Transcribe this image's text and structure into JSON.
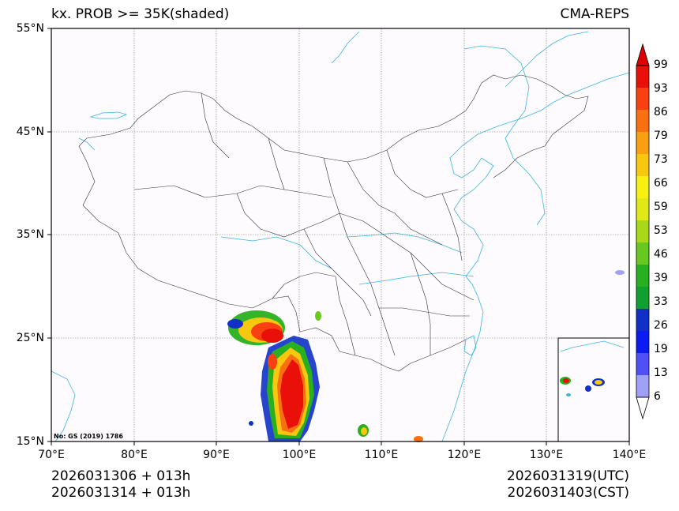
{
  "header": {
    "title_left": "kx. PROB >= 35K(shaded)",
    "title_right": "CMA-REPS"
  },
  "axes": {
    "lat_labels": [
      "55°N",
      "45°N",
      "35°N",
      "25°N",
      "15°N"
    ],
    "lon_labels": [
      "70°E",
      "80°E",
      "90°E",
      "100°E",
      "110°E",
      "120°E",
      "130°E",
      "140°E"
    ]
  },
  "colorbar": {
    "ticks": [
      "99",
      "93",
      "86",
      "79",
      "73",
      "66",
      "59",
      "53",
      "46",
      "39",
      "33",
      "26",
      "19",
      "13",
      "6"
    ],
    "colors": [
      "#a0a0f8",
      "#5050f8",
      "#0a1cf0",
      "#1030c8",
      "#10a030",
      "#28b020",
      "#68c820",
      "#a8d818",
      "#e0e818",
      "#f8f010",
      "#f8c810",
      "#f8a010",
      "#f87010",
      "#f84010",
      "#e81008"
    ],
    "over_color": "#e00000",
    "under_color": "#ffffff"
  },
  "map": {
    "watermark": "No: GS (2019) 1786"
  },
  "footer": {
    "init_utc": "2026031306  +  013h",
    "init_cst": "2026031314  +  013h",
    "valid_utc": "2026031319(UTC)",
    "valid_cst": "2026031403(CST)"
  }
}
